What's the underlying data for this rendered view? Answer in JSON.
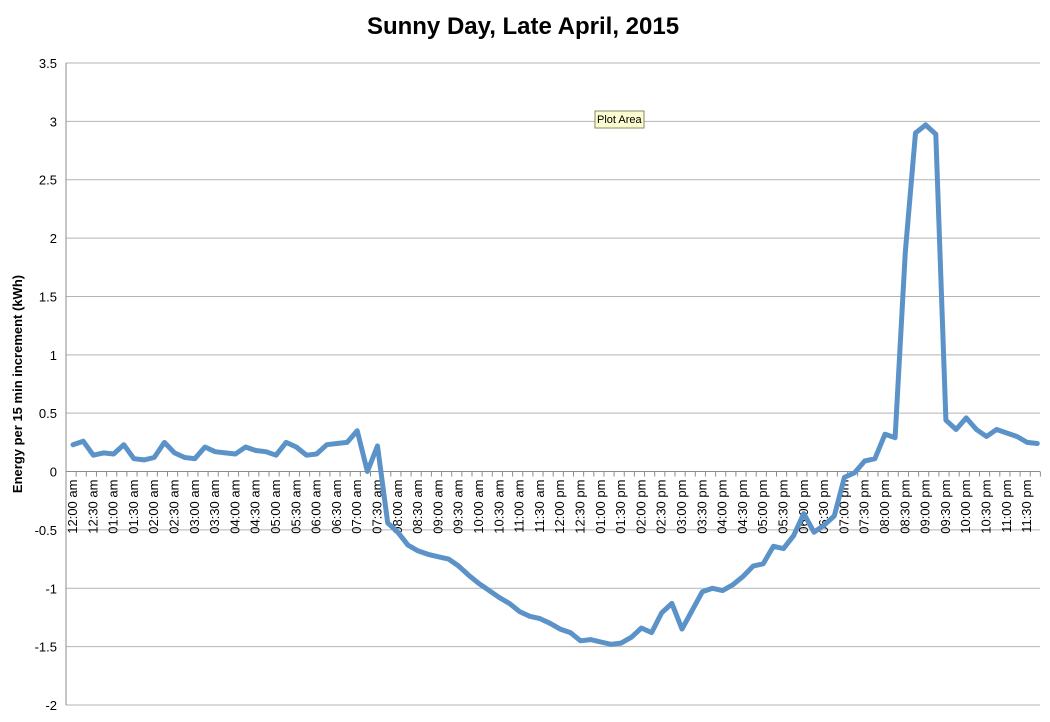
{
  "chart_data": {
    "type": "line",
    "title": "Sunny Day, Late April, 2015",
    "xlabel": "",
    "ylabel": "Energy per 15 min increment (kWh)",
    "ylim": [
      -2,
      3.5
    ],
    "yticks": [
      -2,
      -1.5,
      -1,
      -0.5,
      0,
      0.5,
      1,
      1.5,
      2,
      2.5,
      3,
      3.5
    ],
    "ytick_labels": [
      "-2",
      "-1.5",
      "-1",
      "-0.5",
      "0",
      "0.5",
      "1",
      "1.5",
      "2",
      "2.5",
      "3",
      "3.5"
    ],
    "grid": true,
    "legend": "none",
    "line_color": "#5b93c8",
    "xtick_labels": [
      "12:00 am",
      "12:30 am",
      "01:00 am",
      "01:30 am",
      "02:00 am",
      "02:30 am",
      "03:00 am",
      "03:30 am",
      "04:00 am",
      "04:30 am",
      "05:00 am",
      "05:30 am",
      "06:00 am",
      "06:30 am",
      "07:00 am",
      "07:30 am",
      "08:00 am",
      "08:30 am",
      "09:00 am",
      "09:30 am",
      "10:00 am",
      "10:30 am",
      "11:00 am",
      "11:30 am",
      "12:00 pm",
      "12:30 pm",
      "01:00 pm",
      "01:30 pm",
      "02:00 pm",
      "02:30 pm",
      "03:00 pm",
      "03:30 pm",
      "04:00 pm",
      "04:30 pm",
      "05:00 pm",
      "05:30 pm",
      "06:00 pm",
      "06:30 pm",
      "07:00 pm",
      "07:30 pm",
      "08:00 pm",
      "08:30 pm",
      "09:00 pm",
      "09:30 pm",
      "10:00 pm",
      "10:30 pm",
      "11:00 pm",
      "11:30 pm"
    ],
    "x": [
      "12:00 am",
      "12:15 am",
      "12:30 am",
      "12:45 am",
      "01:00 am",
      "01:15 am",
      "01:30 am",
      "01:45 am",
      "02:00 am",
      "02:15 am",
      "02:30 am",
      "02:45 am",
      "03:00 am",
      "03:15 am",
      "03:30 am",
      "03:45 am",
      "04:00 am",
      "04:15 am",
      "04:30 am",
      "04:45 am",
      "05:00 am",
      "05:15 am",
      "05:30 am",
      "05:45 am",
      "06:00 am",
      "06:15 am",
      "06:30 am",
      "06:45 am",
      "07:00 am",
      "07:15 am",
      "07:30 am",
      "07:45 am",
      "08:00 am",
      "08:15 am",
      "08:30 am",
      "08:45 am",
      "09:00 am",
      "09:15 am",
      "09:30 am",
      "09:45 am",
      "10:00 am",
      "10:15 am",
      "10:30 am",
      "10:45 am",
      "11:00 am",
      "11:15 am",
      "11:30 am",
      "11:45 am",
      "12:00 pm",
      "12:15 pm",
      "12:30 pm",
      "12:45 pm",
      "01:00 pm",
      "01:15 pm",
      "01:30 pm",
      "01:45 pm",
      "02:00 pm",
      "02:15 pm",
      "02:30 pm",
      "02:45 pm",
      "03:00 pm",
      "03:15 pm",
      "03:30 pm",
      "03:45 pm",
      "04:00 pm",
      "04:15 pm",
      "04:30 pm",
      "04:45 pm",
      "05:00 pm",
      "05:15 pm",
      "05:30 pm",
      "05:45 pm",
      "06:00 pm",
      "06:15 pm",
      "06:30 pm",
      "06:45 pm",
      "07:00 pm",
      "07:15 pm",
      "07:30 pm",
      "07:45 pm",
      "08:00 pm",
      "08:15 pm",
      "08:30 pm",
      "08:45 pm",
      "09:00 pm",
      "09:15 pm",
      "09:30 pm",
      "09:45 pm",
      "10:00 pm",
      "10:15 pm",
      "10:30 pm",
      "10:45 pm",
      "11:00 pm",
      "11:15 pm",
      "11:30 pm",
      "11:45 pm"
    ],
    "series": [
      {
        "values": [
          0.23,
          0.26,
          0.14,
          0.16,
          0.15,
          0.23,
          0.11,
          0.1,
          0.12,
          0.25,
          0.16,
          0.12,
          0.11,
          0.21,
          0.17,
          0.16,
          0.15,
          0.21,
          0.18,
          0.17,
          0.14,
          0.25,
          0.21,
          0.14,
          0.15,
          0.23,
          0.24,
          0.25,
          0.35,
          0.0,
          0.22,
          -0.44,
          -0.52,
          -0.63,
          -0.68,
          -0.71,
          -0.73,
          -0.75,
          -0.81,
          -0.89,
          -0.96,
          -1.02,
          -1.08,
          -1.13,
          -1.2,
          -1.24,
          -1.26,
          -1.3,
          -1.35,
          -1.38,
          -1.45,
          -1.44,
          -1.46,
          -1.48,
          -1.47,
          -1.42,
          -1.34,
          -1.38,
          -1.21,
          -1.13,
          -1.35,
          -1.19,
          -1.03,
          -1.0,
          -1.02,
          -0.97,
          -0.9,
          -0.81,
          -0.79,
          -0.64,
          -0.66,
          -0.55,
          -0.36,
          -0.52,
          -0.46,
          -0.38,
          -0.05,
          -0.01,
          0.09,
          0.11,
          0.32,
          0.29,
          1.88,
          2.9,
          2.97,
          2.89,
          0.44,
          0.36,
          0.46,
          0.36,
          0.3,
          0.36,
          0.33,
          0.3,
          0.25,
          0.24
        ]
      }
    ],
    "tooltip": "Plot Area"
  }
}
